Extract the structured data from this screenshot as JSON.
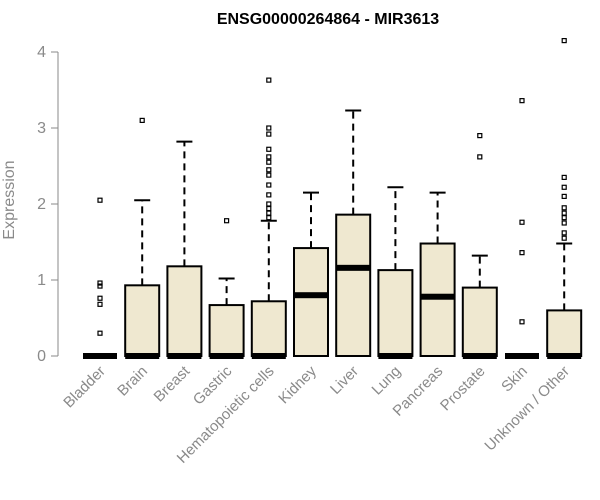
{
  "chart_data": {
    "type": "box",
    "title": "ENSG00000264864 - MIR3613",
    "ylabel": "Expression",
    "xlabel": "",
    "ylim": [
      0,
      4.1
    ],
    "yticks": [
      0,
      1,
      2,
      3,
      4
    ],
    "grid": false,
    "box_fill": "#efe8d0",
    "box_stroke": "#000000",
    "categories": [
      "Bladder",
      "Brain",
      "Breast",
      "Gastric",
      "Hematopoietic cells",
      "Kidney",
      "Liver",
      "Lung",
      "Pancreas",
      "Prostate",
      "Skin",
      "Unknown / Other"
    ],
    "boxes": [
      {
        "category": "Bladder",
        "whisker_low": 0,
        "q1": 0,
        "median": 0,
        "q3": 0,
        "whisker_high": 0,
        "outliers": [
          0.3,
          0.68,
          0.76,
          0.92,
          0.96,
          2.05
        ]
      },
      {
        "category": "Brain",
        "whisker_low": 0,
        "q1": 0,
        "median": 0,
        "q3": 0.93,
        "whisker_high": 2.05,
        "outliers": [
          3.1
        ]
      },
      {
        "category": "Breast",
        "whisker_low": 0,
        "q1": 0,
        "median": 0,
        "q3": 1.18,
        "whisker_high": 2.82,
        "outliers": []
      },
      {
        "category": "Gastric",
        "whisker_low": 0,
        "q1": 0,
        "median": 0,
        "q3": 0.67,
        "whisker_high": 1.02,
        "outliers": [
          1.78
        ]
      },
      {
        "category": "Hematopoietic cells",
        "whisker_low": 0,
        "q1": 0,
        "median": 0,
        "q3": 0.72,
        "whisker_high": 1.78,
        "outliers": [
          1.82,
          1.88,
          1.94,
          2.0,
          2.12,
          2.25,
          2.38,
          2.45,
          2.55,
          2.62,
          2.72,
          2.92,
          3.0,
          3.63
        ]
      },
      {
        "category": "Kidney",
        "whisker_low": 0,
        "q1": 0,
        "median": 0.8,
        "q3": 1.42,
        "whisker_high": 2.15,
        "outliers": []
      },
      {
        "category": "Liver",
        "whisker_low": 0,
        "q1": 0,
        "median": 1.16,
        "q3": 1.86,
        "whisker_high": 3.23,
        "outliers": []
      },
      {
        "category": "Lung",
        "whisker_low": 0,
        "q1": 0,
        "median": 0,
        "q3": 1.13,
        "whisker_high": 2.22,
        "outliers": []
      },
      {
        "category": "Pancreas",
        "whisker_low": 0,
        "q1": 0,
        "median": 0.78,
        "q3": 1.48,
        "whisker_high": 2.15,
        "outliers": []
      },
      {
        "category": "Prostate",
        "whisker_low": 0,
        "q1": 0,
        "median": 0,
        "q3": 0.9,
        "whisker_high": 1.32,
        "outliers": [
          2.62,
          2.9
        ]
      },
      {
        "category": "Skin",
        "whisker_low": 0,
        "q1": 0,
        "median": 0,
        "q3": 0,
        "whisker_high": 0,
        "outliers": [
          0.45,
          1.36,
          1.76,
          3.36
        ]
      },
      {
        "category": "Unknown / Other",
        "whisker_low": 0,
        "q1": 0,
        "median": 0,
        "q3": 0.6,
        "whisker_high": 1.48,
        "outliers": [
          1.55,
          1.62,
          1.75,
          1.82,
          1.88,
          1.95,
          2.1,
          2.22,
          2.35,
          4.15
        ]
      }
    ]
  }
}
